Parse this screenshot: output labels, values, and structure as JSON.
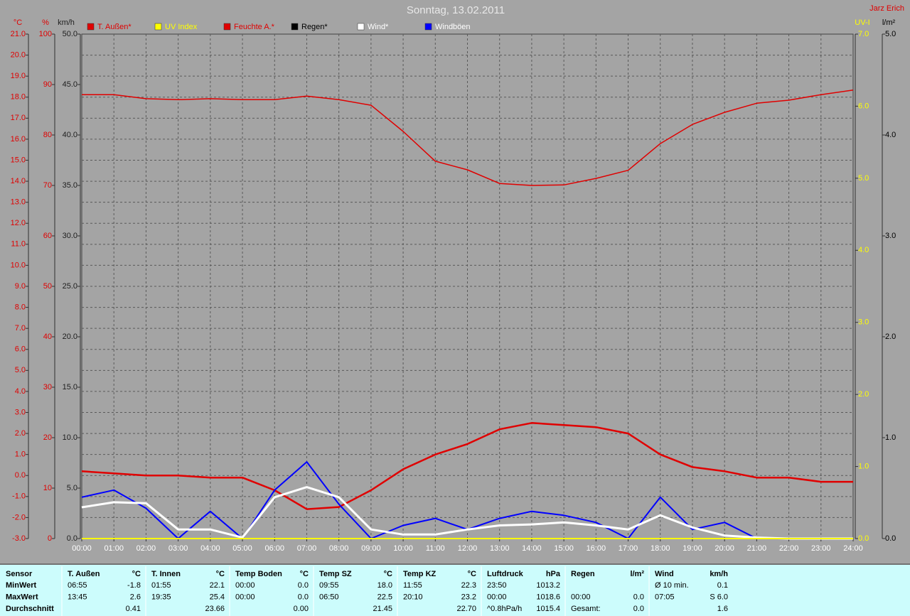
{
  "chart_data": {
    "type": "line",
    "title": "Sonntag, 13.02.2011",
    "author": "Jarz Erich",
    "grid": true,
    "x": [
      "00:00",
      "01:00",
      "02:00",
      "03:00",
      "04:00",
      "05:00",
      "06:00",
      "07:00",
      "08:00",
      "09:00",
      "10:00",
      "11:00",
      "12:00",
      "13:00",
      "14:00",
      "15:00",
      "16:00",
      "17:00",
      "18:00",
      "19:00",
      "20:00",
      "21:00",
      "22:00",
      "23:00",
      "24:00"
    ],
    "ylabel": "°C",
    "ycolor": "#e00000",
    "ylim": [
      -3,
      21
    ],
    "yticks": [
      {
        "value": -3,
        "label": "-3.0"
      },
      {
        "value": -2,
        "label": "-2.0"
      },
      {
        "value": -1,
        "label": "-1.0"
      },
      {
        "value": 0,
        "label": "0.0"
      },
      {
        "value": 1,
        "label": "1.0"
      },
      {
        "value": 2,
        "label": "2.0"
      },
      {
        "value": 3,
        "label": "3.0"
      },
      {
        "value": 4,
        "label": "4.0"
      },
      {
        "value": 5,
        "label": "5.0"
      },
      {
        "value": 6,
        "label": "6.0"
      },
      {
        "value": 7,
        "label": "7.0"
      },
      {
        "value": 8,
        "label": "8.0"
      },
      {
        "value": 9,
        "label": "9.0"
      },
      {
        "value": 10,
        "label": "10.0"
      },
      {
        "value": 11,
        "label": "11.0"
      },
      {
        "value": 12,
        "label": "12.0"
      },
      {
        "value": 13,
        "label": "13.0"
      },
      {
        "value": 14,
        "label": "14.0"
      },
      {
        "value": 15,
        "label": "15.0"
      },
      {
        "value": 16,
        "label": "16.0"
      },
      {
        "value": 17,
        "label": "17.0"
      },
      {
        "value": 18,
        "label": "18.0"
      },
      {
        "value": 19,
        "label": "19.0"
      },
      {
        "value": 20,
        "label": "20.0"
      },
      {
        "value": 21,
        "label": "21.0"
      }
    ],
    "y2label": "%",
    "y2color": "#e00000",
    "y2lim": [
      0,
      100
    ],
    "y2ticks": [
      0,
      10,
      20,
      30,
      40,
      50,
      60,
      70,
      80,
      90,
      100
    ],
    "y3label": "km/h",
    "y3color": "#202020",
    "y3lim": [
      0,
      50
    ],
    "y3ticks": [
      {
        "value": 0,
        "label": "0.0"
      },
      {
        "value": 5,
        "label": "5.0"
      },
      {
        "value": 10,
        "label": "10.0"
      },
      {
        "value": 15,
        "label": "15.0"
      },
      {
        "value": 20,
        "label": "20.0"
      },
      {
        "value": 25,
        "label": "25.0"
      },
      {
        "value": 30,
        "label": "30.0"
      },
      {
        "value": 35,
        "label": "35.0"
      },
      {
        "value": 40,
        "label": "40.0"
      },
      {
        "value": 45,
        "label": "45.0"
      },
      {
        "value": 50,
        "label": "50.0"
      }
    ],
    "y4label": "UV-I",
    "y4color": "#ffff00",
    "y4lim": [
      0,
      7
    ],
    "y4ticks": [
      {
        "value": 0,
        "label": "0.0"
      },
      {
        "value": 1,
        "label": "1.0"
      },
      {
        "value": 2,
        "label": "2.0"
      },
      {
        "value": 3,
        "label": "3.0"
      },
      {
        "value": 4,
        "label": "4.0"
      },
      {
        "value": 5,
        "label": "5.0"
      },
      {
        "value": 6,
        "label": "6.0"
      },
      {
        "value": 7,
        "label": "7.0"
      }
    ],
    "y5label": "l/m²",
    "y5color": "#000000",
    "y5lim": [
      0,
      5
    ],
    "y5ticks": [
      {
        "value": 0,
        "label": "0.0"
      },
      {
        "value": 1,
        "label": "1.0"
      },
      {
        "value": 2,
        "label": "2.0"
      },
      {
        "value": 3,
        "label": "3.0"
      },
      {
        "value": 4,
        "label": "4.0"
      },
      {
        "value": 5,
        "label": "5.0"
      }
    ],
    "series": [
      {
        "name": "T. Außen*",
        "color": "#e00000",
        "axis": "y",
        "width": 2.5,
        "values": [
          0.2,
          0.1,
          0.0,
          0.0,
          -0.1,
          -0.1,
          -0.7,
          -1.6,
          -1.5,
          -0.7,
          0.3,
          1.0,
          1.5,
          2.2,
          2.5,
          2.4,
          2.3,
          2.0,
          1.0,
          0.4,
          0.2,
          -0.1,
          -0.1,
          -0.3,
          -0.3
        ]
      },
      {
        "name": "UV Index",
        "color": "#ffff00",
        "axis": "y4",
        "width": 2,
        "values": [
          0,
          0,
          0,
          0,
          0,
          0,
          0,
          0,
          0,
          0,
          0,
          0,
          0,
          0,
          0,
          0,
          0,
          0,
          0,
          0,
          0,
          0,
          0,
          0,
          0
        ]
      },
      {
        "name": "Feuchte A.*",
        "color": "#e00000",
        "axis": "y2",
        "width": 1.5,
        "values": [
          88.0,
          88.0,
          87.2,
          87.0,
          87.2,
          87.0,
          87.0,
          87.7,
          87.0,
          85.9,
          80.7,
          74.8,
          73.1,
          70.4,
          70.0,
          70.1,
          71.4,
          73.0,
          78.3,
          82.1,
          84.5,
          86.3,
          86.9,
          88.0,
          88.9
        ]
      },
      {
        "name": "Regen*",
        "color": "#000000",
        "axis": "y5",
        "width": 1,
        "values": [
          0,
          0,
          0,
          0,
          0,
          0,
          0,
          0,
          0,
          0,
          0,
          0,
          0,
          0,
          0,
          0,
          0,
          0,
          0,
          0,
          0,
          0,
          0,
          0,
          0
        ]
      },
      {
        "name": "Wind*",
        "color": "#ffffff",
        "axis": "y3",
        "width": 3,
        "values": [
          3.1,
          3.6,
          3.5,
          0.9,
          0.9,
          0.1,
          4.1,
          5.1,
          4.1,
          0.9,
          0.4,
          0.4,
          0.9,
          1.3,
          1.4,
          1.6,
          1.3,
          0.9,
          2.3,
          1.1,
          0.3,
          0.1,
          0,
          0,
          0
        ]
      },
      {
        "name": "Windböen",
        "color": "#0000ff",
        "axis": "y3",
        "width": 2,
        "values": [
          4.1,
          4.8,
          3.0,
          0,
          2.7,
          0,
          4.8,
          7.6,
          3.4,
          0,
          1.3,
          2.0,
          0.9,
          2.0,
          2.7,
          2.3,
          1.6,
          0,
          4.1,
          0.9,
          1.6,
          0,
          0,
          0,
          0
        ]
      }
    ]
  },
  "table": {
    "rows": [
      [
        "Sensor",
        "T. Außen",
        "°C",
        "T. Innen",
        "°C",
        "Temp Boden",
        "°C",
        "Temp SZ",
        "°C",
        "Temp KZ",
        "°C",
        "Luftdruck",
        "hPa",
        "Regen",
        "l/m²",
        "Wind",
        "km/h"
      ],
      [
        "MinWert",
        "06:55",
        "-1.8",
        "01:55",
        "22.1",
        "00:00",
        "0.0",
        "09:55",
        "18.0",
        "11:55",
        "22.3",
        "23:50",
        "1013.2",
        null,
        null,
        "Ø 10 min.",
        "0.1"
      ],
      [
        "MaxWert",
        "13:45",
        "2.6",
        "19:35",
        "25.4",
        "00:00",
        "0.0",
        "06:50",
        "22.5",
        "20:10",
        "23.2",
        "00:00",
        "1018.6",
        "00:00",
        "0.0",
        "07:05",
        "S 6.0"
      ],
      [
        "Durchschnitt",
        null,
        "0.41",
        null,
        "23.66",
        null,
        "0.00",
        null,
        "21.45",
        null,
        "22.70",
        "^0.8hPa/h",
        "1015.4",
        "Gesamt:",
        "0.0",
        null,
        "1.6"
      ]
    ]
  }
}
